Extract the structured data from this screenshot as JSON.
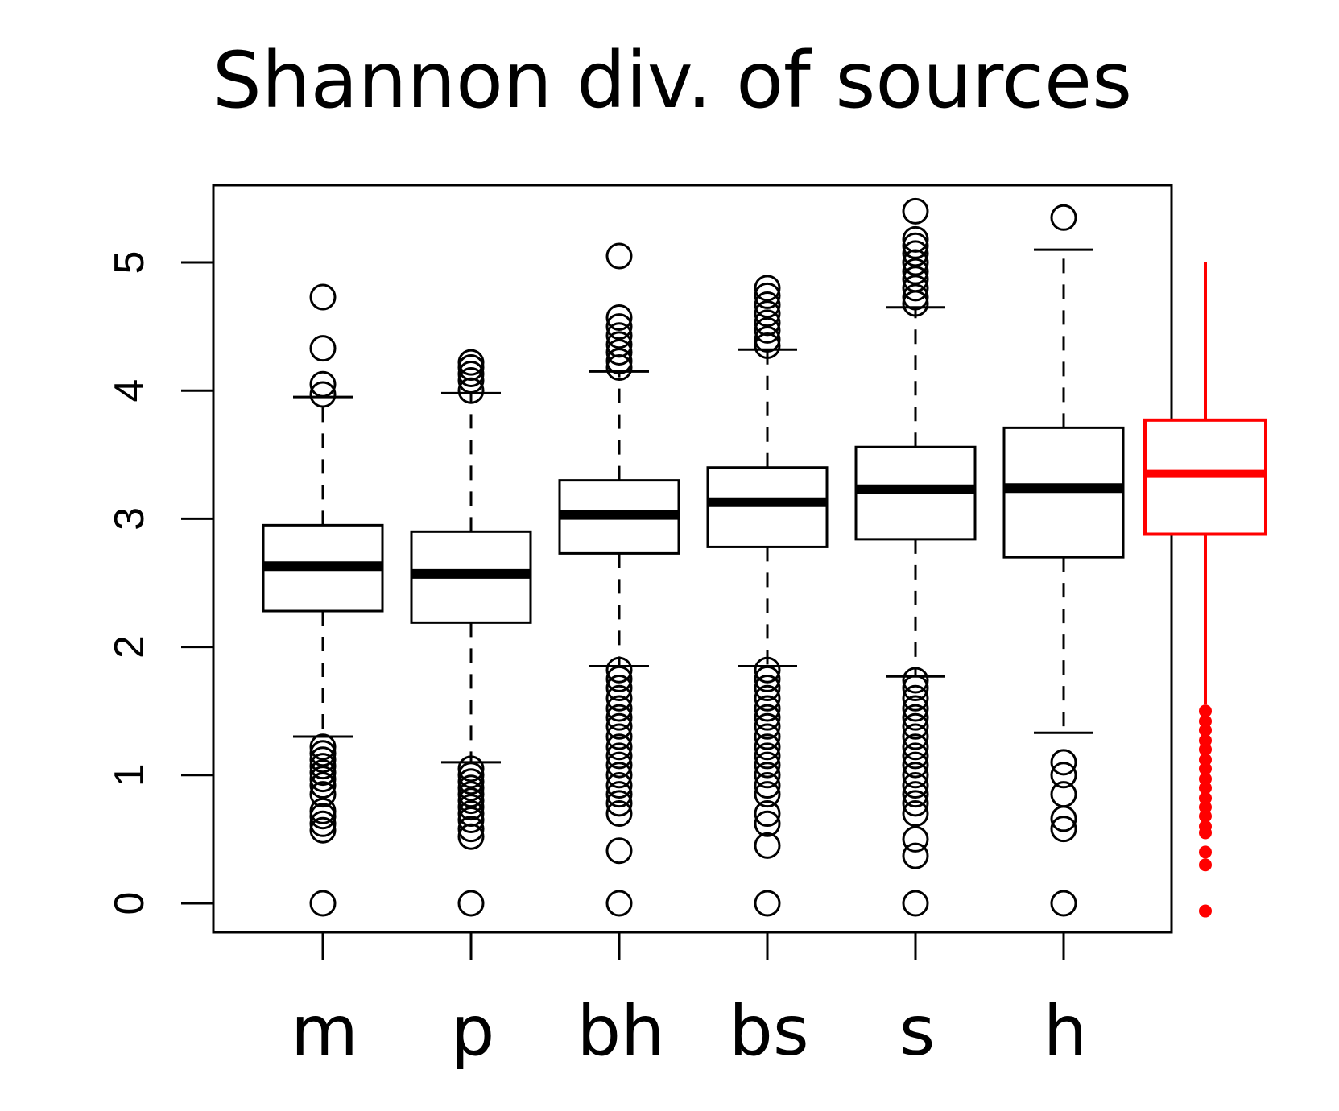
{
  "chart_data": {
    "type": "box",
    "title": "Shannon div.  of sources",
    "xlabel": "",
    "ylabel": "",
    "ylim": [
      -0.2,
      5.6
    ],
    "y_ticks": [
      "0",
      "1",
      "2",
      "3",
      "4",
      "5"
    ],
    "categories": [
      "m",
      "p",
      "bh",
      "bs",
      "s",
      "h"
    ],
    "boxes": [
      {
        "name": "m",
        "whisker_low": 1.3,
        "q1": 2.28,
        "median": 2.63,
        "q3": 2.95,
        "whisker_high": 3.95,
        "outliers": [
          0,
          0.57,
          0.62,
          0.68,
          0.72,
          0.85,
          0.92,
          0.97,
          1.02,
          1.07,
          1.12,
          1.17,
          1.22,
          3.97,
          4.05,
          4.33,
          4.73
        ]
      },
      {
        "name": "p",
        "whisker_low": 1.1,
        "q1": 2.19,
        "median": 2.57,
        "q3": 2.9,
        "whisker_high": 3.98,
        "outliers": [
          0,
          0.52,
          0.58,
          0.65,
          0.7,
          0.75,
          0.8,
          0.85,
          0.9,
          0.95,
          1.0,
          1.05,
          4.0,
          4.08,
          4.13,
          4.18,
          4.22
        ]
      },
      {
        "name": "bh",
        "whisker_low": 1.85,
        "q1": 2.73,
        "median": 3.03,
        "q3": 3.3,
        "whisker_high": 4.15,
        "outliers": [
          0,
          0.41,
          0.7,
          0.78,
          0.85,
          0.92,
          1.0,
          1.08,
          1.15,
          1.22,
          1.3,
          1.38,
          1.45,
          1.52,
          1.6,
          1.68,
          1.75,
          1.82,
          4.18,
          4.23,
          4.3,
          4.36,
          4.43,
          4.5,
          4.57,
          5.05
        ]
      },
      {
        "name": "bs",
        "whisker_low": 1.85,
        "q1": 2.78,
        "median": 3.13,
        "q3": 3.4,
        "whisker_high": 4.32,
        "outliers": [
          0,
          0.45,
          0.62,
          0.7,
          0.85,
          0.92,
          1.0,
          1.08,
          1.15,
          1.22,
          1.3,
          1.38,
          1.45,
          1.52,
          1.6,
          1.68,
          1.75,
          1.82,
          4.35,
          4.4,
          4.47,
          4.53,
          4.6,
          4.67,
          4.74,
          4.8
        ]
      },
      {
        "name": "s",
        "whisker_low": 1.77,
        "q1": 2.84,
        "median": 3.23,
        "q3": 3.56,
        "whisker_high": 4.65,
        "outliers": [
          0,
          0.37,
          0.5,
          0.7,
          0.78,
          0.85,
          0.92,
          1.0,
          1.08,
          1.15,
          1.22,
          1.3,
          1.38,
          1.45,
          1.52,
          1.6,
          1.68,
          1.74,
          4.68,
          4.73,
          4.8,
          4.87,
          4.93,
          5.0,
          5.07,
          5.13,
          5.18,
          5.4
        ]
      },
      {
        "name": "h",
        "whisker_low": 1.33,
        "q1": 2.7,
        "median": 3.24,
        "q3": 3.71,
        "whisker_high": 5.1,
        "outliers": [
          0,
          0.58,
          0.66,
          0.85,
          1.0,
          1.1,
          5.35
        ]
      }
    ],
    "reference_box": {
      "color": "#ff0000",
      "whisker_low": 1.55,
      "q1": 2.88,
      "median": 3.35,
      "q3": 3.77,
      "whisker_high": 5.0,
      "outliers": [
        -0.06,
        0.3,
        0.4,
        0.55,
        0.6,
        0.68,
        0.75,
        0.82,
        0.9,
        0.97,
        1.05,
        1.12,
        1.2,
        1.27,
        1.35,
        1.42,
        1.5
      ]
    }
  }
}
